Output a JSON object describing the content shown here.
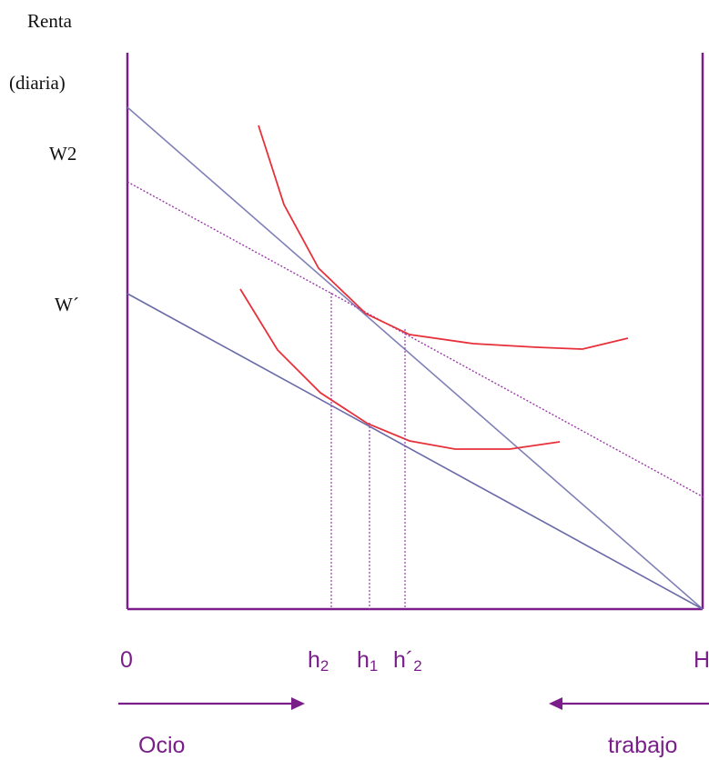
{
  "labels": {
    "y_axis_line1": "Renta",
    "y_axis_line2": "(diaria)",
    "w2": "W2",
    "w_prime": "W´",
    "origin": "0",
    "h_end": "H",
    "h2_main": "h",
    "h2_sub": "2",
    "h1_main": "h",
    "h1_sub": "1",
    "h2p_main": "h´",
    "h2p_sub": "2",
    "ocio": "Ocio",
    "trabajo": "trabajo"
  },
  "colors": {
    "axis": "#7a1f8a",
    "budget_line": "#8080b8",
    "dotted_line": "#9a3aa8",
    "indifference_curve": "#e8303a",
    "label_accent": "#7a1f8a"
  }
}
